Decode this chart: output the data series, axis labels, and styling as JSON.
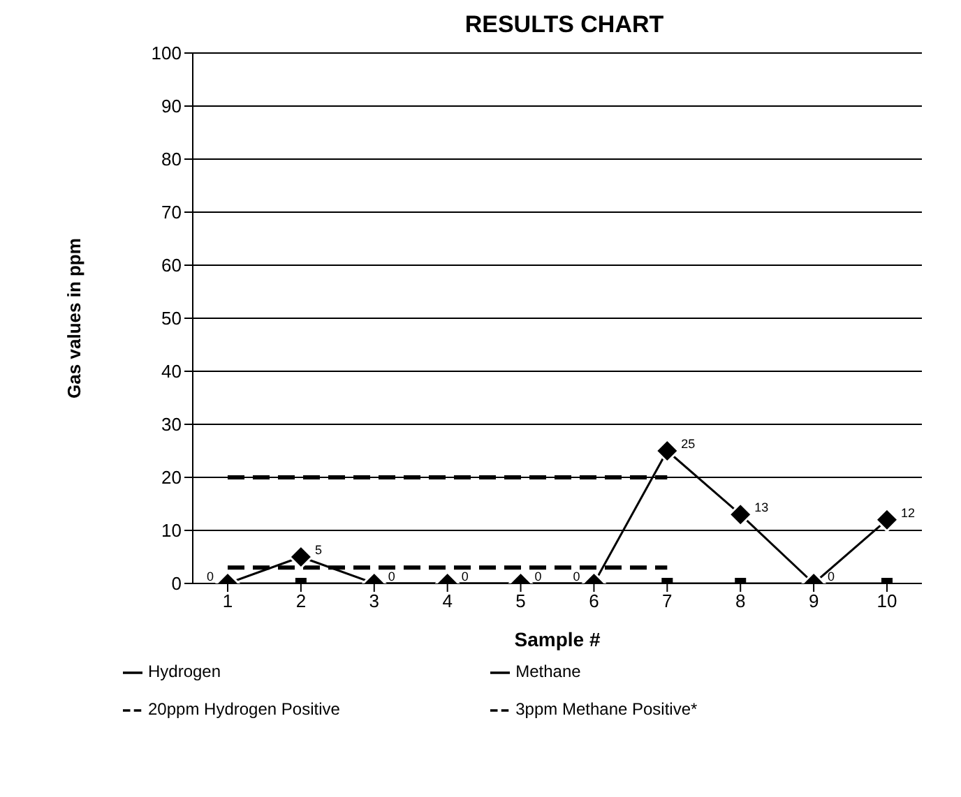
{
  "chart_data": {
    "type": "line",
    "title": "RESULTS CHART",
    "xlabel": "Sample #",
    "ylabel": "Gas values in ppm",
    "categories": [
      "1",
      "2",
      "3",
      "4",
      "5",
      "6",
      "7",
      "8",
      "9",
      "10"
    ],
    "series": [
      {
        "name": "Hydrogen",
        "color": "#000000",
        "marker": "diamond",
        "line_style": "solid",
        "values": [
          0,
          5,
          0,
          0,
          0,
          0,
          25,
          13,
          0,
          12
        ],
        "value_labels": [
          "0",
          "5",
          "0",
          "0",
          "0",
          "0",
          "25",
          "13",
          "0",
          "12"
        ]
      },
      {
        "name": "Methane",
        "color": "#000000",
        "marker": "square",
        "line_style": "solid",
        "values": [
          0,
          0,
          0,
          0,
          0,
          0,
          0,
          0,
          0,
          0
        ]
      },
      {
        "name": "20ppm Hydrogen Positive",
        "color": "#000000",
        "marker": "none",
        "line_style": "dashed",
        "values": [
          20,
          20,
          20,
          20,
          20,
          20,
          20,
          null,
          null,
          null
        ]
      },
      {
        "name": "3ppm Methane Positive*",
        "color": "#000000",
        "marker": "none",
        "line_style": "dashed",
        "values": [
          3,
          3,
          3,
          3,
          3,
          3,
          3,
          null,
          null,
          null
        ]
      }
    ],
    "ylim": [
      0,
      100
    ],
    "yticks": [
      0,
      10,
      20,
      30,
      40,
      50,
      60,
      70,
      80,
      90,
      100
    ],
    "grid": "y",
    "legend": "bottom"
  }
}
